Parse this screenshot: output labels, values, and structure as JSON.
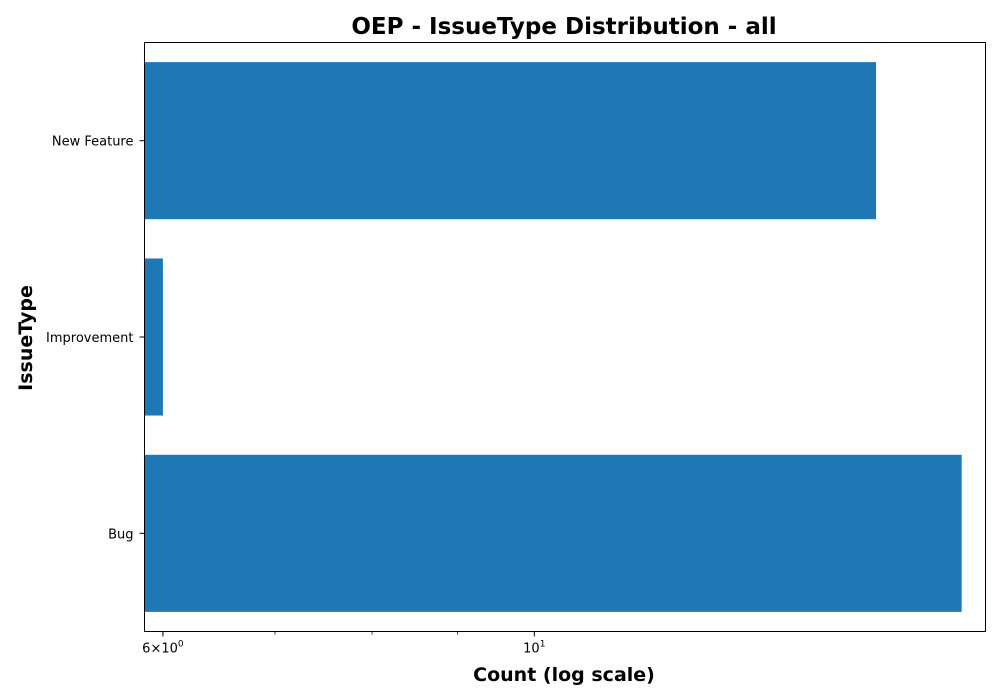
{
  "chart_data": {
    "type": "bar",
    "orientation": "horizontal",
    "title": "OEP - IssueType Distribution - all",
    "xlabel": "Count (log scale)",
    "ylabel": "IssueType",
    "x_scale": "log",
    "xlim": [
      5.85,
      18.6
    ],
    "grid": false,
    "legend": "none",
    "bar_color": "#1f77b4",
    "categories": [
      "Bug",
      "Improvement",
      "New Feature"
    ],
    "values": [
      18,
      6,
      16
    ],
    "x_ticks": [
      {
        "value": 6,
        "base": "6×10",
        "exp": "0"
      },
      {
        "value": 10,
        "base": "10",
        "exp": "1"
      }
    ],
    "x_minor_ticks": [
      7,
      8,
      9
    ]
  }
}
